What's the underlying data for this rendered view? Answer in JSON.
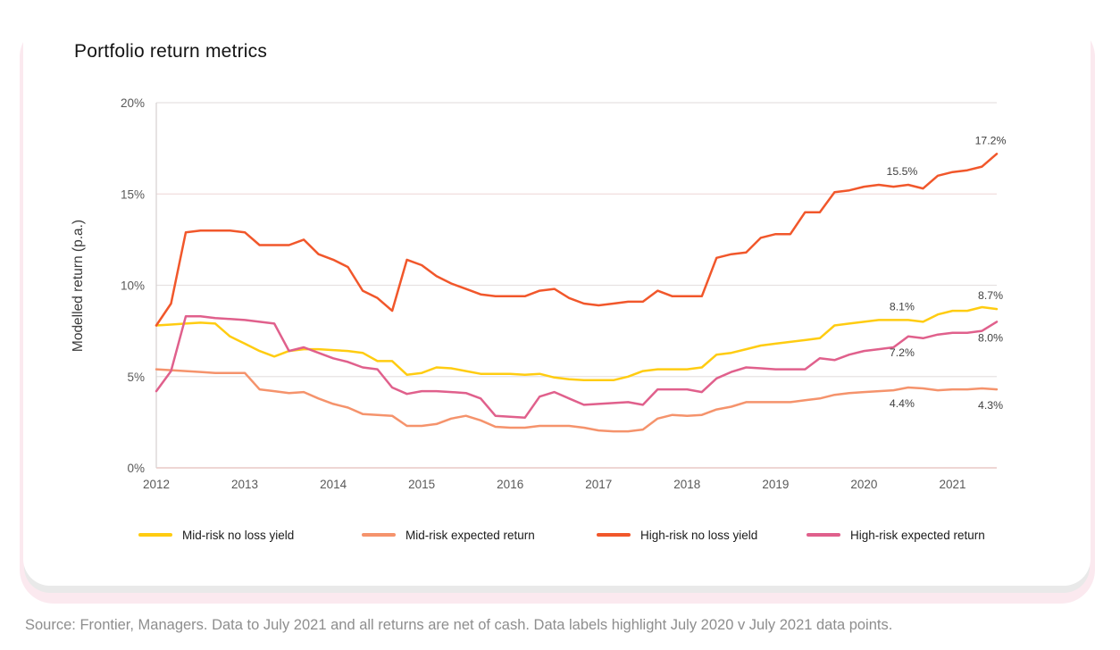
{
  "card": {
    "title": "Portfolio return metrics"
  },
  "source_note": "Source: Frontier, Managers. Data to July 2021 and all returns are net of cash. Data labels highlight July 2020 v July 2021 data points.",
  "chart_data": {
    "type": "line",
    "title": "Portfolio return metrics",
    "xlabel": "",
    "ylabel": "Modelled return (p.a.)",
    "ylim": [
      0,
      20
    ],
    "yticks": [
      0,
      5,
      10,
      15,
      20
    ],
    "ytick_suffix": "%",
    "xticks": [
      2012,
      2013,
      2014,
      2015,
      2016,
      2017,
      2018,
      2019,
      2020,
      2021
    ],
    "x_start": 2012.0,
    "x_end": 2021.5,
    "points_per_year": 6,
    "grid": true,
    "legend_position": "bottom",
    "series": [
      {
        "name": "Mid-risk no loss yield",
        "color": "#FFCC11",
        "values": [
          7.8,
          7.85,
          7.9,
          7.95,
          7.9,
          7.2,
          6.8,
          6.4,
          6.1,
          6.4,
          6.5,
          6.5,
          6.45,
          6.4,
          6.3,
          5.85,
          5.85,
          5.1,
          5.2,
          5.5,
          5.45,
          5.3,
          5.15,
          5.15,
          5.15,
          5.1,
          5.15,
          4.95,
          4.85,
          4.8,
          4.8,
          4.8,
          5.0,
          5.3,
          5.4,
          5.4,
          5.4,
          5.5,
          6.2,
          6.3,
          6.5,
          6.7,
          6.8,
          6.9,
          7.0,
          7.1,
          7.8,
          7.9,
          8.0,
          8.1,
          8.1,
          8.1,
          8.0,
          8.4,
          8.6,
          8.6,
          8.8,
          8.7
        ]
      },
      {
        "name": "Mid-risk expected return",
        "color": "#F5936C",
        "values": [
          5.4,
          5.35,
          5.3,
          5.25,
          5.2,
          5.2,
          5.2,
          4.3,
          4.2,
          4.1,
          4.15,
          3.8,
          3.5,
          3.3,
          2.95,
          2.9,
          2.85,
          2.3,
          2.3,
          2.4,
          2.7,
          2.85,
          2.6,
          2.25,
          2.2,
          2.2,
          2.3,
          2.3,
          2.3,
          2.2,
          2.05,
          2.0,
          2.0,
          2.1,
          2.7,
          2.9,
          2.85,
          2.9,
          3.2,
          3.35,
          3.6,
          3.6,
          3.6,
          3.6,
          3.7,
          3.8,
          4.0,
          4.1,
          4.15,
          4.2,
          4.25,
          4.4,
          4.35,
          4.25,
          4.3,
          4.3,
          4.35,
          4.3
        ]
      },
      {
        "name": "High-risk no loss yield",
        "color": "#F1572B",
        "values": [
          7.8,
          9.0,
          12.9,
          13.0,
          13.0,
          13.0,
          12.9,
          12.2,
          12.2,
          12.2,
          12.5,
          11.7,
          11.4,
          11.0,
          9.7,
          9.3,
          8.6,
          11.4,
          11.1,
          10.5,
          10.1,
          9.8,
          9.5,
          9.4,
          9.4,
          9.4,
          9.7,
          9.8,
          9.3,
          9.0,
          8.9,
          9.0,
          9.1,
          9.1,
          9.7,
          9.4,
          9.4,
          9.4,
          11.5,
          11.7,
          11.8,
          12.6,
          12.8,
          12.8,
          14.0,
          14.0,
          15.1,
          15.2,
          15.4,
          15.5,
          15.4,
          15.5,
          15.3,
          16.0,
          16.2,
          16.3,
          16.5,
          17.2
        ]
      },
      {
        "name": "High-risk expected return",
        "color": "#E0608C",
        "values": [
          4.2,
          5.3,
          8.3,
          8.3,
          8.2,
          8.15,
          8.1,
          8.0,
          7.9,
          6.4,
          6.6,
          6.3,
          6.0,
          5.8,
          5.5,
          5.4,
          4.4,
          4.05,
          4.2,
          4.2,
          4.15,
          4.1,
          3.8,
          2.85,
          2.8,
          2.75,
          3.9,
          4.15,
          3.8,
          3.45,
          3.5,
          3.55,
          3.6,
          3.45,
          4.3,
          4.3,
          4.3,
          4.15,
          4.9,
          5.25,
          5.5,
          5.45,
          5.4,
          5.4,
          5.4,
          6.0,
          5.9,
          6.2,
          6.4,
          6.5,
          6.6,
          7.2,
          7.1,
          7.3,
          7.4,
          7.4,
          7.5,
          8.0
        ]
      }
    ],
    "annotations": [
      {
        "label": "15.5%",
        "x": 2020.5,
        "value": 15.5,
        "series": "High-risk no loss yield",
        "placement": "above"
      },
      {
        "label": "17.2%",
        "x": 2021.5,
        "value": 17.2,
        "series": "High-risk no loss yield",
        "placement": "above"
      },
      {
        "label": "8.1%",
        "x": 2020.5,
        "value": 8.1,
        "series": "Mid-risk no loss yield",
        "placement": "above"
      },
      {
        "label": "8.7%",
        "x": 2021.5,
        "value": 8.7,
        "series": "Mid-risk no loss yield",
        "placement": "above"
      },
      {
        "label": "7.2%",
        "x": 2020.5,
        "value": 7.2,
        "series": "High-risk expected return",
        "placement": "below"
      },
      {
        "label": "8.0%",
        "x": 2021.5,
        "value": 8.0,
        "series": "High-risk expected return",
        "placement": "below"
      },
      {
        "label": "4.4%",
        "x": 2020.5,
        "value": 4.4,
        "series": "Mid-risk expected return",
        "placement": "below"
      },
      {
        "label": "4.3%",
        "x": 2021.5,
        "value": 4.3,
        "series": "Mid-risk expected return",
        "placement": "below"
      }
    ]
  }
}
